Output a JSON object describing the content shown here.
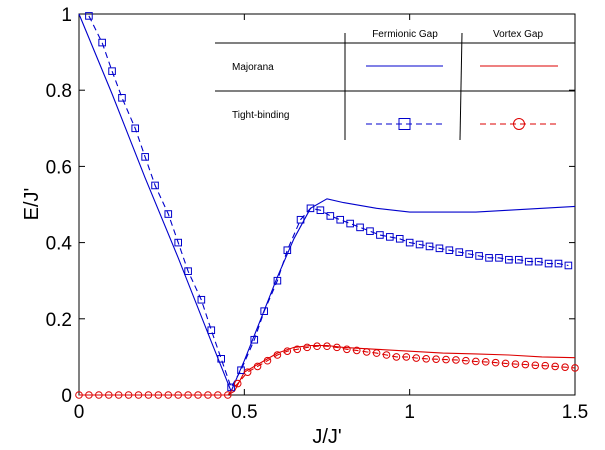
{
  "chart_data": {
    "type": "line",
    "title": "",
    "xlabel": "J/J'",
    "ylabel": "E/J'",
    "xlim": [
      0,
      1.5
    ],
    "ylim": [
      0,
      1
    ],
    "xticks": [
      0,
      0.5,
      1,
      1.5
    ],
    "xtick_labels": [
      "0",
      "0.5",
      "1",
      "1.5"
    ],
    "yticks": [
      0,
      0.2,
      0.4,
      0.6,
      0.8,
      1
    ],
    "ytick_labels": [
      "0",
      "0.2",
      "0.4",
      "0.6",
      "0.8",
      "1"
    ],
    "grid": false,
    "legend": {
      "placement": "top-right",
      "col_headers": [
        "Fermionic Gap",
        "Vortex Gap"
      ],
      "row_labels": [
        "Majorana",
        "Tight-binding"
      ]
    },
    "series": [
      {
        "name": "Majorana Fermionic Gap",
        "legend_row": 0,
        "legend_col": 0,
        "color": "#0000cc",
        "style": "solid",
        "marker": "none",
        "x": [
          0,
          0.1,
          0.2,
          0.3,
          0.4,
          0.46,
          0.5,
          0.55,
          0.6,
          0.65,
          0.7,
          0.75,
          0.8,
          0.9,
          1.0,
          1.1,
          1.2,
          1.3,
          1.4,
          1.5
        ],
        "y": [
          1.0,
          0.79,
          0.57,
          0.36,
          0.14,
          0.01,
          0.09,
          0.2,
          0.31,
          0.41,
          0.49,
          0.515,
          0.505,
          0.49,
          0.48,
          0.48,
          0.48,
          0.485,
          0.49,
          0.495
        ]
      },
      {
        "name": "Majorana Vortex Gap",
        "legend_row": 0,
        "legend_col": 1,
        "color": "#dd0000",
        "style": "solid",
        "marker": "none",
        "x": [
          0,
          0.1,
          0.2,
          0.3,
          0.4,
          0.45,
          0.47,
          0.5,
          0.55,
          0.6,
          0.65,
          0.7,
          0.75,
          0.8,
          0.9,
          1.0,
          1.1,
          1.2,
          1.3,
          1.4,
          1.5
        ],
        "y": [
          0,
          0,
          0,
          0,
          0,
          0,
          0.01,
          0.06,
          0.085,
          0.11,
          0.125,
          0.13,
          0.13,
          0.125,
          0.12,
          0.115,
          0.11,
          0.108,
          0.105,
          0.1,
          0.098
        ]
      },
      {
        "name": "Tight-binding Fermionic Gap",
        "legend_row": 1,
        "legend_col": 0,
        "color": "#0000cc",
        "style": "dashed",
        "marker": "square",
        "x": [
          0.03,
          0.07,
          0.1,
          0.13,
          0.17,
          0.2,
          0.23,
          0.27,
          0.3,
          0.33,
          0.37,
          0.4,
          0.43,
          0.46,
          0.49,
          0.53,
          0.56,
          0.6,
          0.63,
          0.67,
          0.7,
          0.73,
          0.76,
          0.79,
          0.82,
          0.85,
          0.88,
          0.91,
          0.94,
          0.97,
          1.0,
          1.03,
          1.06,
          1.09,
          1.12,
          1.15,
          1.18,
          1.21,
          1.24,
          1.27,
          1.3,
          1.33,
          1.36,
          1.39,
          1.42,
          1.45,
          1.48
        ],
        "y": [
          0.995,
          0.925,
          0.85,
          0.78,
          0.7,
          0.625,
          0.55,
          0.475,
          0.4,
          0.325,
          0.25,
          0.17,
          0.095,
          0.02,
          0.065,
          0.145,
          0.22,
          0.3,
          0.38,
          0.46,
          0.49,
          0.485,
          0.47,
          0.46,
          0.45,
          0.44,
          0.43,
          0.42,
          0.415,
          0.41,
          0.4,
          0.395,
          0.39,
          0.385,
          0.38,
          0.375,
          0.37,
          0.365,
          0.36,
          0.36,
          0.355,
          0.355,
          0.35,
          0.35,
          0.345,
          0.345,
          0.34
        ]
      },
      {
        "name": "Tight-binding Vortex Gap",
        "legend_row": 1,
        "legend_col": 1,
        "color": "#dd0000",
        "style": "dashed",
        "marker": "circle",
        "x": [
          0,
          0.03,
          0.06,
          0.09,
          0.12,
          0.15,
          0.18,
          0.21,
          0.24,
          0.27,
          0.3,
          0.33,
          0.36,
          0.39,
          0.42,
          0.45,
          0.48,
          0.51,
          0.54,
          0.57,
          0.6,
          0.63,
          0.66,
          0.69,
          0.72,
          0.75,
          0.78,
          0.81,
          0.84,
          0.87,
          0.9,
          0.93,
          0.96,
          0.99,
          1.02,
          1.05,
          1.08,
          1.11,
          1.14,
          1.17,
          1.2,
          1.23,
          1.26,
          1.29,
          1.32,
          1.35,
          1.38,
          1.41,
          1.44,
          1.47,
          1.5
        ],
        "y": [
          0,
          0,
          0,
          0,
          0,
          0,
          0,
          0,
          0,
          0,
          0,
          0,
          0,
          0,
          0,
          0,
          0.03,
          0.06,
          0.075,
          0.09,
          0.105,
          0.115,
          0.12,
          0.125,
          0.128,
          0.128,
          0.125,
          0.12,
          0.117,
          0.113,
          0.11,
          0.105,
          0.1,
          0.1,
          0.097,
          0.095,
          0.094,
          0.093,
          0.092,
          0.09,
          0.088,
          0.087,
          0.085,
          0.083,
          0.081,
          0.08,
          0.078,
          0.077,
          0.075,
          0.073,
          0.071
        ]
      }
    ]
  }
}
